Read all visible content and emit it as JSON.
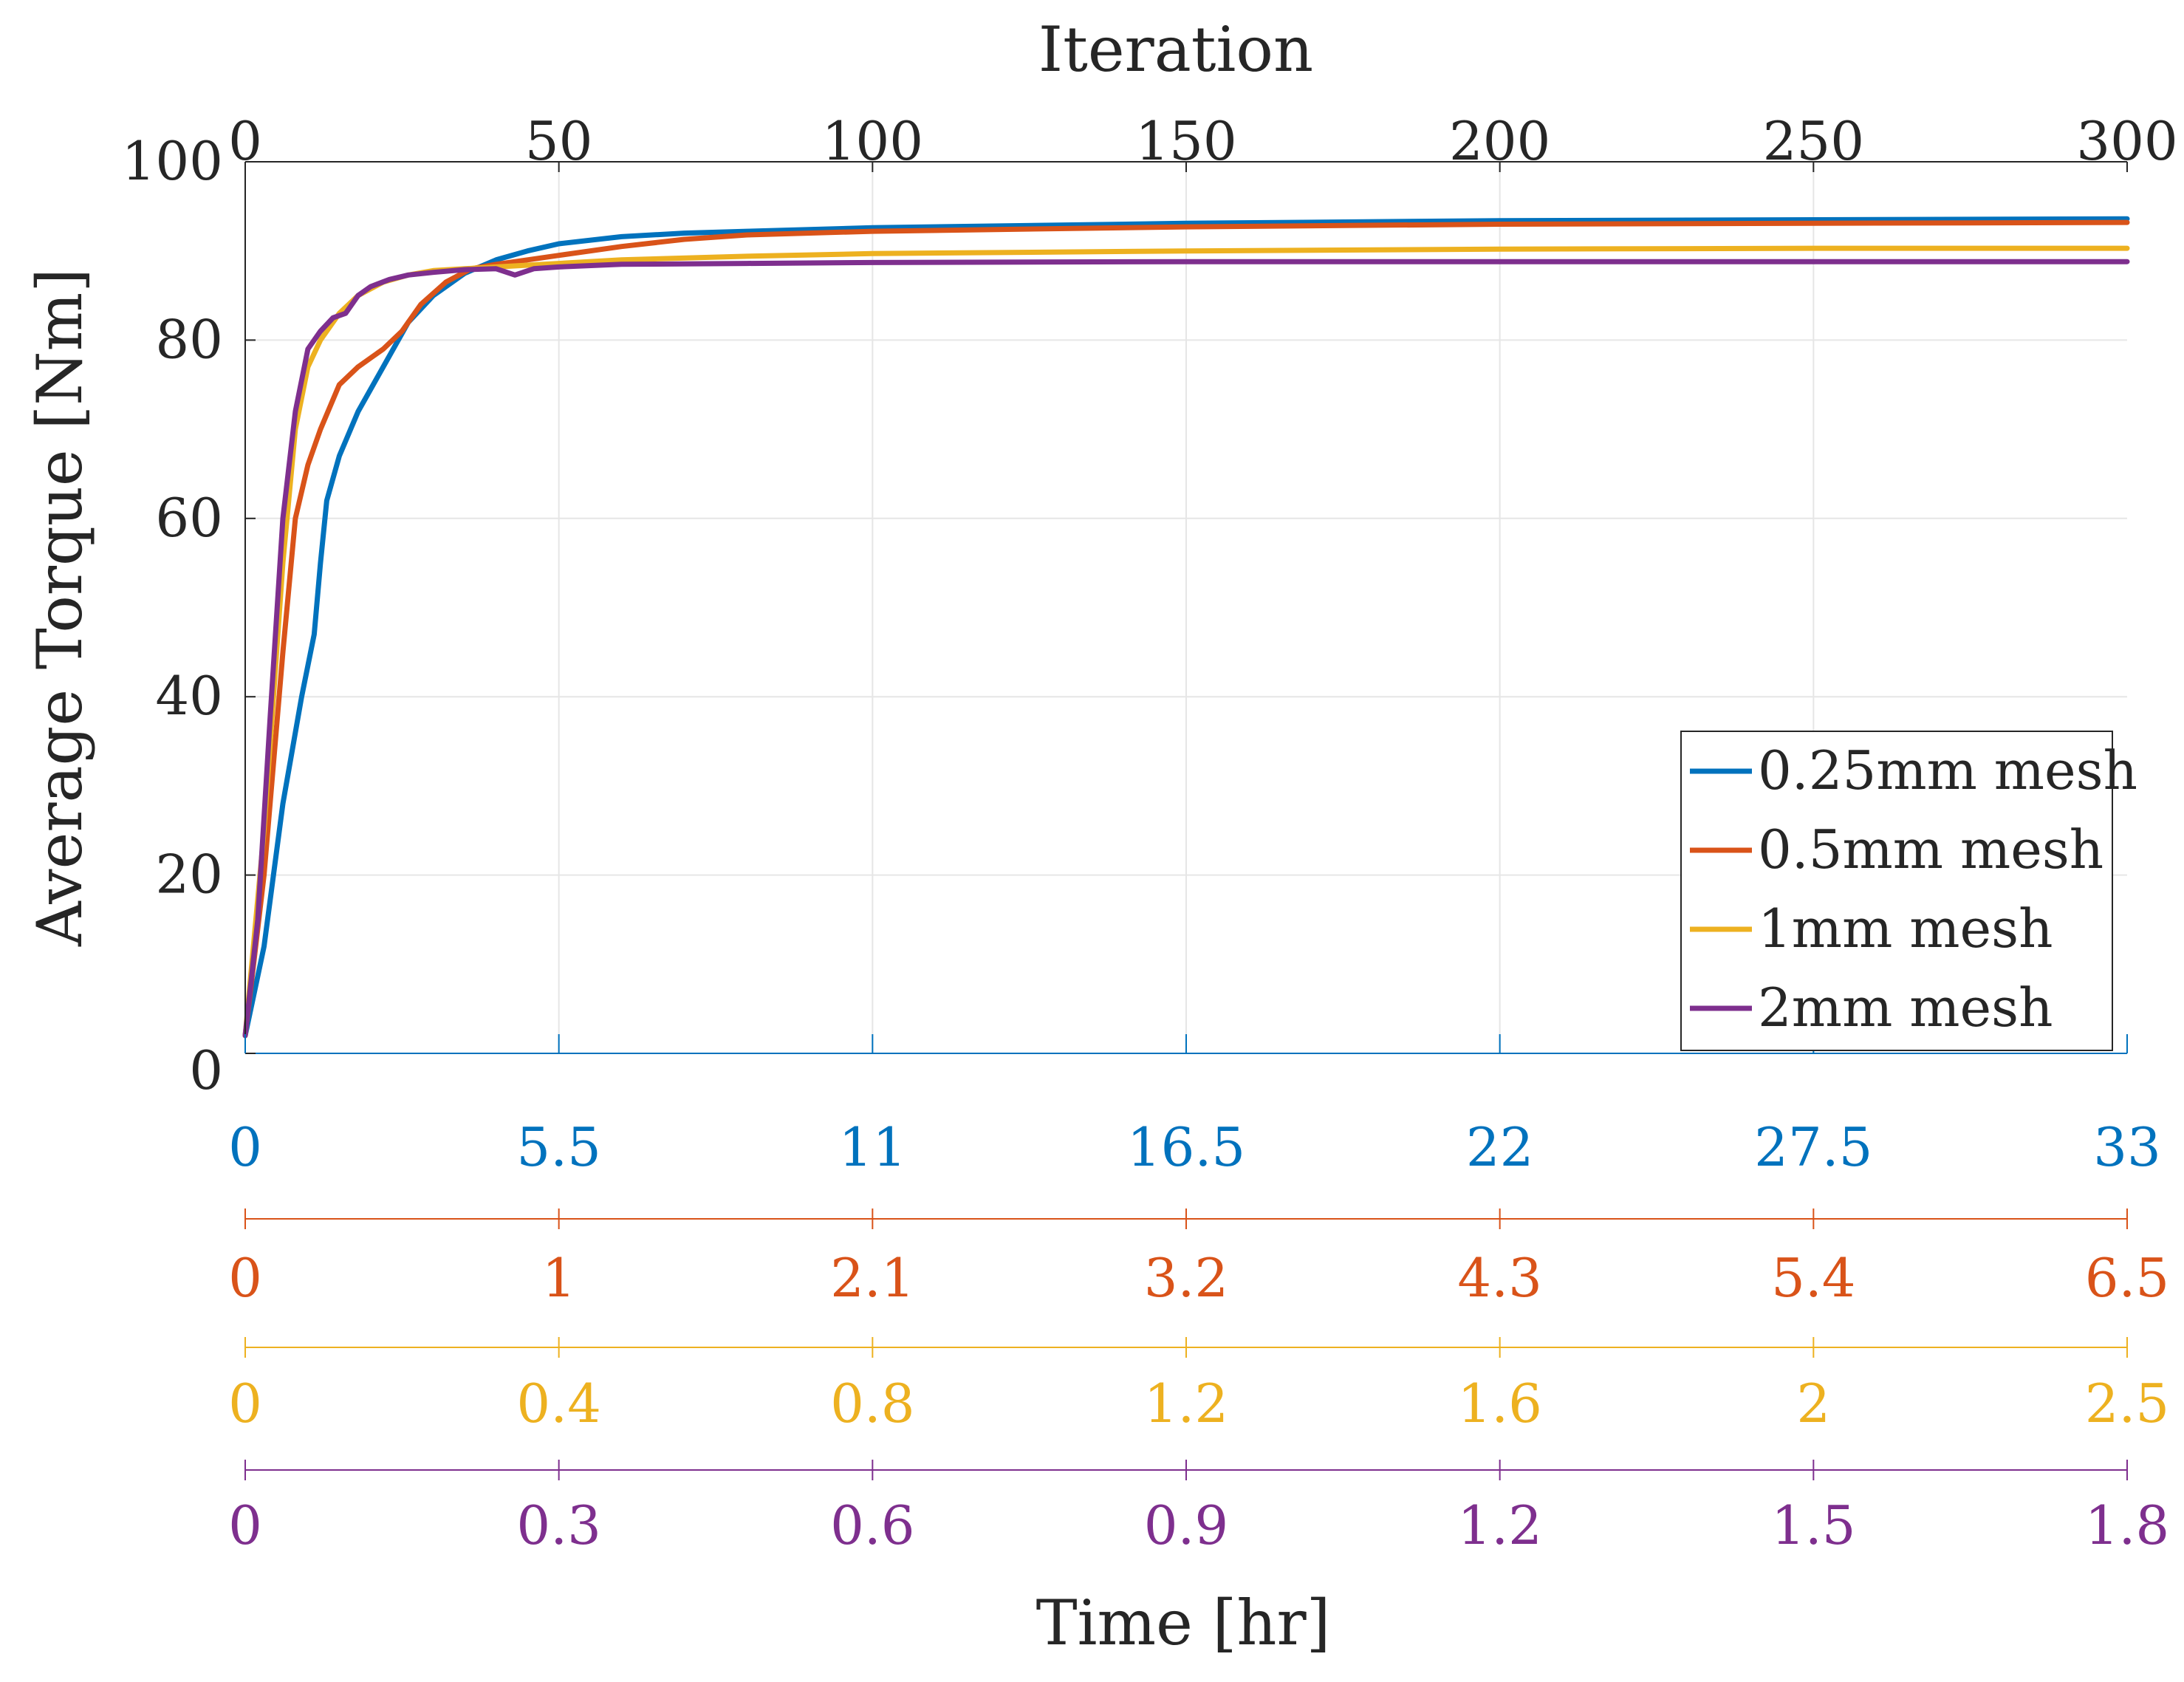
{
  "chart_data": {
    "type": "line",
    "top_axis": {
      "label": "Iteration",
      "range": [
        0,
        300
      ],
      "ticks": [
        0,
        50,
        100,
        150,
        200,
        250,
        300
      ],
      "tick_labels": [
        "0",
        "50",
        "100",
        "150",
        "200",
        "250",
        "300"
      ]
    },
    "ylabel": "Average Torque [Nm]",
    "ylim": [
      0,
      100
    ],
    "yticks": [
      0,
      20,
      40,
      60,
      80,
      100
    ],
    "ytick_labels": [
      "0",
      "20",
      "40",
      "60",
      "80",
      "100"
    ],
    "grid": true,
    "xlabel": "Time [hr]",
    "time_axes": [
      {
        "series": "0.25mm mesh",
        "color": "#0072BD",
        "tick_labels": [
          "0",
          "5.5",
          "11",
          "16.5",
          "22",
          "27.5",
          "33"
        ]
      },
      {
        "series": "0.5mm mesh",
        "color": "#D95319",
        "tick_labels": [
          "0",
          "1",
          "2.1",
          "3.2",
          "4.3",
          "5.4",
          "6.5"
        ]
      },
      {
        "series": "1mm mesh",
        "color": "#EDB120",
        "tick_labels": [
          "0",
          "0.4",
          "0.8",
          "1.2",
          "1.6",
          "2",
          "2.5"
        ]
      },
      {
        "series": "2mm mesh",
        "color": "#7E2F8E",
        "tick_labels": [
          "0",
          "0.3",
          "0.6",
          "0.9",
          "1.2",
          "1.5",
          "1.8"
        ]
      }
    ],
    "legend_position": "lower-right",
    "series": [
      {
        "name": "0.25mm mesh",
        "color": "#0072BD",
        "points": [
          [
            0,
            2
          ],
          [
            3,
            12
          ],
          [
            6,
            28
          ],
          [
            9,
            40
          ],
          [
            11,
            47
          ],
          [
            12,
            55
          ],
          [
            13,
            62
          ],
          [
            15,
            67
          ],
          [
            18,
            72
          ],
          [
            22,
            77
          ],
          [
            26,
            82
          ],
          [
            30,
            85
          ],
          [
            35,
            87.5
          ],
          [
            40,
            89
          ],
          [
            45,
            90
          ],
          [
            50,
            90.8
          ],
          [
            60,
            91.6
          ],
          [
            70,
            92
          ],
          [
            80,
            92.2
          ],
          [
            100,
            92.6
          ],
          [
            150,
            93.1
          ],
          [
            200,
            93.4
          ],
          [
            250,
            93.5
          ],
          [
            300,
            93.6
          ]
        ]
      },
      {
        "name": "0.5mm mesh",
        "color": "#D95319",
        "points": [
          [
            0,
            2
          ],
          [
            3,
            20
          ],
          [
            6,
            45
          ],
          [
            8,
            60
          ],
          [
            10,
            66
          ],
          [
            12,
            70
          ],
          [
            15,
            75
          ],
          [
            18,
            77
          ],
          [
            22,
            79
          ],
          [
            25,
            81
          ],
          [
            28,
            84
          ],
          [
            32,
            86.5
          ],
          [
            36,
            88
          ],
          [
            40,
            88.5
          ],
          [
            45,
            89
          ],
          [
            50,
            89.5
          ],
          [
            60,
            90.5
          ],
          [
            70,
            91.3
          ],
          [
            80,
            91.8
          ],
          [
            100,
            92.2
          ],
          [
            150,
            92.7
          ],
          [
            200,
            93
          ],
          [
            250,
            93.1
          ],
          [
            300,
            93.2
          ]
        ]
      },
      {
        "name": "1mm mesh",
        "color": "#EDB120",
        "points": [
          [
            0,
            2
          ],
          [
            3,
            25
          ],
          [
            6,
            55
          ],
          [
            8,
            70
          ],
          [
            10,
            77
          ],
          [
            12,
            80
          ],
          [
            15,
            83
          ],
          [
            18,
            85
          ],
          [
            22,
            86.5
          ],
          [
            26,
            87.3
          ],
          [
            30,
            87.8
          ],
          [
            35,
            88
          ],
          [
            40,
            88.2
          ],
          [
            50,
            88.6
          ],
          [
            60,
            89
          ],
          [
            80,
            89.4
          ],
          [
            100,
            89.7
          ],
          [
            150,
            90
          ],
          [
            200,
            90.2
          ],
          [
            250,
            90.3
          ],
          [
            300,
            90.3
          ]
        ]
      },
      {
        "name": "2mm mesh",
        "color": "#7E2F8E",
        "points": [
          [
            0,
            2
          ],
          [
            2,
            15
          ],
          [
            4,
            38
          ],
          [
            6,
            60
          ],
          [
            8,
            72
          ],
          [
            10,
            79
          ],
          [
            12,
            81
          ],
          [
            14,
            82.5
          ],
          [
            16,
            83
          ],
          [
            18,
            85
          ],
          [
            20,
            86
          ],
          [
            23,
            86.8
          ],
          [
            26,
            87.3
          ],
          [
            30,
            87.6
          ],
          [
            35,
            87.9
          ],
          [
            40,
            88
          ],
          [
            43,
            87.3
          ],
          [
            46,
            88
          ],
          [
            50,
            88.2
          ],
          [
            60,
            88.5
          ],
          [
            80,
            88.6
          ],
          [
            100,
            88.7
          ],
          [
            150,
            88.8
          ],
          [
            200,
            88.8
          ],
          [
            250,
            88.8
          ],
          [
            300,
            88.8
          ]
        ]
      }
    ]
  }
}
